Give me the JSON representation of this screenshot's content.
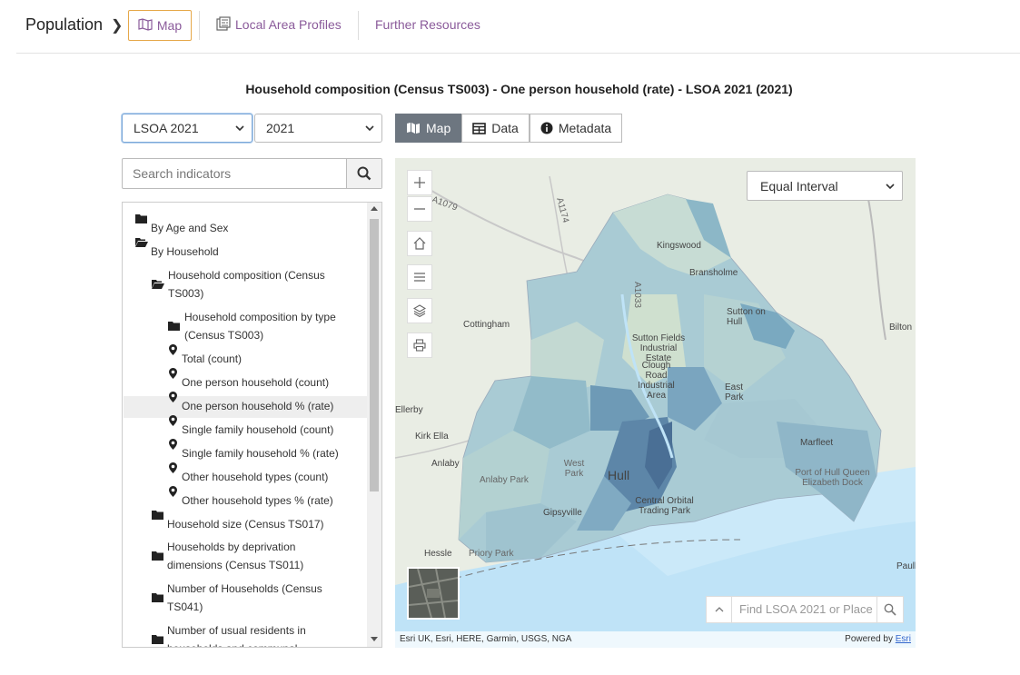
{
  "nav": {
    "breadcrumb": "Population",
    "items": [
      {
        "label": "Map",
        "icon": "map-icon",
        "active": true
      },
      {
        "label": "Local Area Profiles",
        "icon": "profile-icon"
      },
      {
        "label": "Further Resources"
      }
    ]
  },
  "page_title": "Household composition (Census TS003) - One person household (rate) - LSOA 2021 (2021)",
  "controls": {
    "geography_select": "LSOA 2021",
    "year_select": "2021",
    "view_tabs": [
      {
        "label": "Map",
        "icon": "map-icon",
        "active": true
      },
      {
        "label": "Data",
        "icon": "table-icon"
      },
      {
        "label": "Metadata",
        "icon": "info-icon"
      }
    ],
    "search_placeholder": "Search indicators"
  },
  "tree": [
    {
      "label": "By Age and Sex",
      "type": "folder",
      "level": 0
    },
    {
      "label": "By Household",
      "type": "folder-open",
      "level": 0
    },
    {
      "label": "Household composition (Census TS003)",
      "type": "folder-open",
      "level": 1
    },
    {
      "label": "Household composition by type (Census TS003)",
      "type": "folder",
      "level": 2
    },
    {
      "label": "Total (count)",
      "type": "indicator",
      "level": 2
    },
    {
      "label": "One person household (count)",
      "type": "indicator",
      "level": 2
    },
    {
      "label": "One person household % (rate)",
      "type": "indicator",
      "level": 2,
      "selected": true
    },
    {
      "label": "Single family household (count)",
      "type": "indicator",
      "level": 2
    },
    {
      "label": "Single family household % (rate)",
      "type": "indicator",
      "level": 2
    },
    {
      "label": "Other household types (count)",
      "type": "indicator",
      "level": 2
    },
    {
      "label": "Other household types % (rate)",
      "type": "indicator",
      "level": 2
    },
    {
      "label": "Household size (Census TS017)",
      "type": "folder",
      "level": 1
    },
    {
      "label": "Households by deprivation dimensions (Census TS011)",
      "type": "folder",
      "level": 1
    },
    {
      "label": "Number of Households (Census TS041)",
      "type": "folder",
      "level": 1
    },
    {
      "label": "Number of usual residents in households and communal",
      "type": "folder",
      "level": 1
    }
  ],
  "map": {
    "classification": "Equal Interval",
    "find_placeholder": "Find LSOA 2021 or Place",
    "attribution": "Esri UK, Esri, HERE, Garmin, USGS, NGA",
    "powered_by": "Powered by",
    "powered_link": "Esri",
    "controls": [
      "zoom-in-icon",
      "zoom-out-icon",
      "home-icon",
      "list-icon",
      "layers-icon",
      "print-icon"
    ],
    "place_labels": [
      "Kingswood",
      "Bransholme",
      "Cottingham",
      "Sutton on Hull",
      "Bilton",
      "Sutton Fields Industrial Estate",
      "Clough Road Industrial Area",
      "East Park",
      "Ellerby",
      "Kirk Ella",
      "Anlaby",
      "Anlaby Park",
      "West Park",
      "Hull",
      "Marfleet",
      "Port of Hull Queen Elizabeth Dock",
      "Central Orbital Trading Park",
      "Gipsyville",
      "Hessle",
      "Priory Park",
      "Paull",
      "A1079",
      "A1174",
      "A1033"
    ]
  }
}
